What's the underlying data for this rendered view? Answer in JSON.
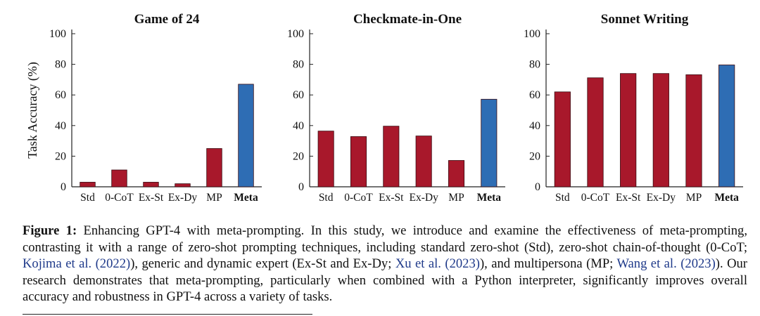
{
  "chart_data": [
    {
      "type": "bar",
      "title": "Game of 24",
      "ylabel": "Task Accuracy (%)",
      "categories": [
        "Std",
        "0-CoT",
        "Ex-St",
        "Ex-Dy",
        "MP",
        "Meta"
      ],
      "values": [
        3,
        11,
        3,
        2,
        25,
        67
      ],
      "ylim": [
        0,
        100
      ],
      "yticks": [
        0,
        20,
        40,
        60,
        80,
        100
      ],
      "grid": false,
      "highlight_category": "Meta"
    },
    {
      "type": "bar",
      "title": "Checkmate-in-One",
      "ylabel": "",
      "categories": [
        "Std",
        "0-CoT",
        "Ex-St",
        "Ex-Dy",
        "MP",
        "Meta"
      ],
      "values": [
        36.4,
        32.8,
        39.6,
        33.2,
        17.2,
        57.2
      ],
      "ylim": [
        0,
        100
      ],
      "yticks": [
        0,
        20,
        40,
        60,
        80,
        100
      ],
      "grid": false,
      "highlight_category": "Meta"
    },
    {
      "type": "bar",
      "title": "Sonnet Writing",
      "ylabel": "",
      "categories": [
        "Std",
        "0-CoT",
        "Ex-St",
        "Ex-Dy",
        "MP",
        "Meta"
      ],
      "values": [
        62,
        71.2,
        74,
        74,
        73.2,
        79.6
      ],
      "ylim": [
        0,
        100
      ],
      "yticks": [
        0,
        20,
        40,
        60,
        80,
        100
      ],
      "grid": false,
      "highlight_category": "Meta"
    }
  ],
  "colors": {
    "baseline_bar": "#a8182b",
    "meta_bar": "#2e6db4",
    "axis": "#222222",
    "citation": "#1f3a8a"
  },
  "caption": {
    "label": "Figure 1:",
    "t1": " Enhancing GPT-4 with meta-prompting. In this study, we introduce and examine the effectiveness of meta-prompting, contrasting it with a range of zero-shot prompting techniques, including standard zero-shot (Std), zero-shot chain-of-thought (0-CoT; ",
    "c1": "Kojima et al. (2022)",
    "t2": "), generic and dynamic expert (Ex-St and Ex-Dy; ",
    "c2": "Xu et al. (2023)",
    "t3": "), and multipersona (MP; ",
    "c3": "Wang et al. (2023)",
    "t4": "). Our research demonstrates that meta-prompting, particularly when combined with a Python interpreter, significantly improves overall accuracy and robustness in GPT-4 across a variety of tasks."
  }
}
